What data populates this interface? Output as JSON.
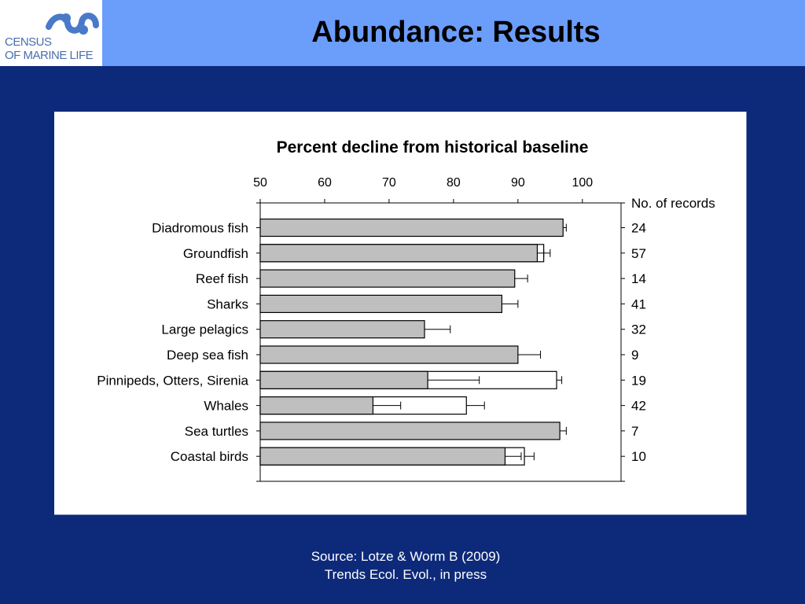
{
  "logo": {
    "line1": "CENSUS",
    "line2": "OF MARINE LIFE",
    "accent": "#4a79c9"
  },
  "slide": {
    "title": "Abundance: Results"
  },
  "source": {
    "line1": "Source: Lotze & Worm B (2009)",
    "line2": "Trends Ecol. Evol., in press"
  },
  "colors": {
    "background": "#0d2a7a",
    "header": "#6b9dfb",
    "bar_fill": "#bfbfbf"
  },
  "chart_data": {
    "type": "bar",
    "orientation": "horizontal",
    "title": "Percent decline from historical baseline",
    "xlim": [
      50,
      106
    ],
    "xticks": [
      50,
      60,
      70,
      80,
      90,
      100
    ],
    "records_header": "No. of records",
    "categories": [
      "Diadromous fish",
      "Groundfish",
      "Reef fish",
      "Sharks",
      "Large pelagics",
      "Deep sea fish",
      "Pinnipeds, Otters, Sirenia",
      "Whales",
      "Sea turtles",
      "Coastal birds"
    ],
    "values": [
      97,
      93,
      89.5,
      87.5,
      75.5,
      90,
      76,
      67.5,
      96.5,
      88
    ],
    "error": [
      0.5,
      1,
      2,
      2.5,
      4,
      3.5,
      8,
      4.3,
      1,
      2.5
    ],
    "records": [
      "24",
      "57",
      "14",
      "41",
      "32",
      "9",
      "19",
      "42",
      "7",
      "10"
    ],
    "series_alt": {
      "values": [
        null,
        94,
        null,
        null,
        null,
        null,
        96,
        82,
        null,
        91
      ],
      "error": [
        null,
        1,
        null,
        null,
        null,
        null,
        0.8,
        2.8,
        null,
        1.5
      ]
    }
  }
}
